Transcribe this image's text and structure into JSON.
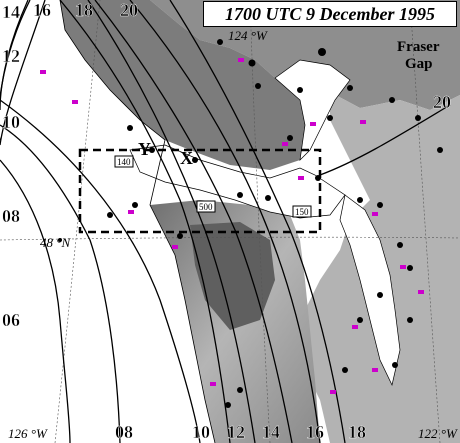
{
  "map": {
    "title": "1700 UTC 9 December 1995",
    "place_label": {
      "line1": "Fraser",
      "line2": "Gap"
    },
    "point_labels": {
      "y": "Y",
      "x": "X"
    },
    "lat_label": "48 °N",
    "lon_labels": {
      "north": "124 °W",
      "sw": "126 °W",
      "se": "122 °W"
    },
    "isobar_labels_left": [
      "14",
      "12",
      "10",
      "08",
      "06"
    ],
    "isobar_labels_top": [
      "16",
      "18",
      "20"
    ],
    "isobar_labels_bottom": [
      "08",
      "10",
      "12",
      "14",
      "16",
      "18"
    ],
    "isobar_label_right": "20",
    "boxed_values": [
      "140",
      "500",
      "150"
    ],
    "colors": {
      "terrain_dark": "#7a7a7a",
      "terrain_light": "#d6d6d6",
      "water": "#ffffff",
      "isobar": "#000000",
      "station_marker": "#cc00cc"
    }
  }
}
